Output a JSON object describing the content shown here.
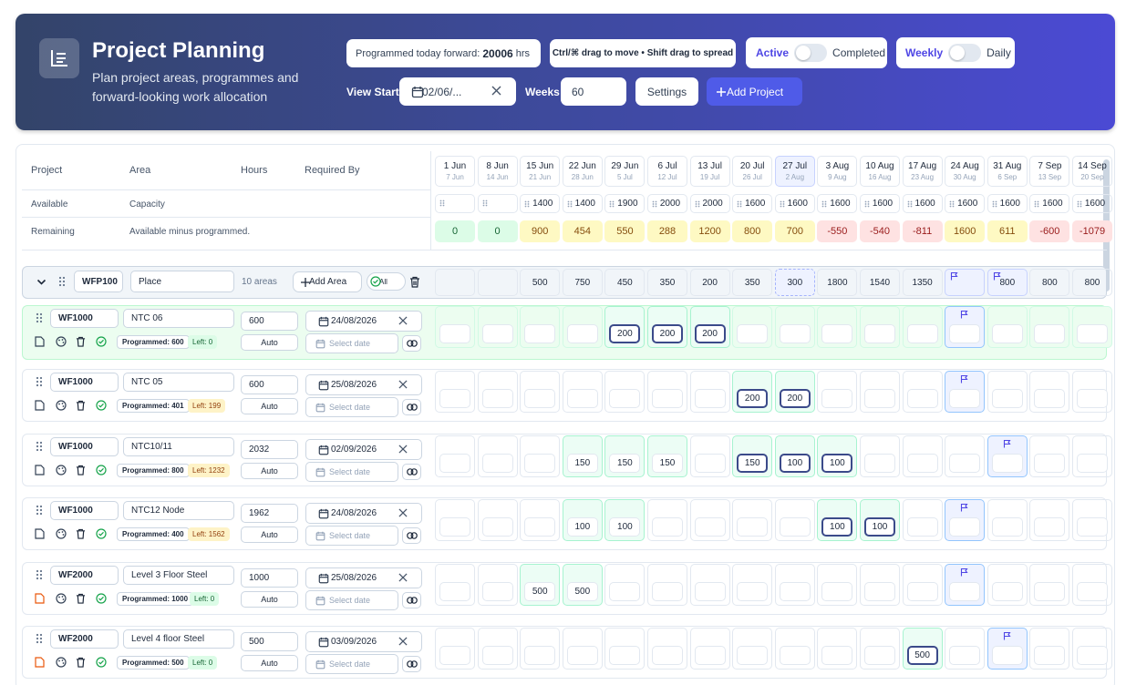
{
  "header": {
    "title": "Project Planning",
    "subtitle": "Plan project areas, programmes and forward-looking work allocation",
    "programmed_label": "Programmed today forward:",
    "programmed_value": "20006",
    "programmed_unit": "hrs",
    "shortcut_hint": "Ctrl/⌘ drag to move • Shift drag to spread",
    "active_label": "Active",
    "completed_label": "Completed",
    "weekly_label": "Weekly",
    "daily_label": "Daily",
    "view_start_label": "View Start",
    "view_start_value": "02/06/...",
    "weeks_label": "Weeks",
    "weeks_value": "60",
    "settings_label": "Settings",
    "add_project_label": "Add Project"
  },
  "columns": {
    "project": "Project",
    "area": "Area",
    "hours": "Hours",
    "required_by": "Required By"
  },
  "available": {
    "label": "Available",
    "desc": "Capacity"
  },
  "remaining": {
    "label": "Remaining",
    "desc": "Available minus programmed."
  },
  "weeks": [
    {
      "d": "1 Jun",
      "s": "7 Jun",
      "cap": "",
      "rem": "0",
      "k": "g"
    },
    {
      "d": "8 Jun",
      "s": "14 Jun",
      "cap": "",
      "rem": "0",
      "k": "g"
    },
    {
      "d": "15 Jun",
      "s": "21 Jun",
      "cap": "1400",
      "rem": "900",
      "k": "y"
    },
    {
      "d": "22 Jun",
      "s": "28 Jun",
      "cap": "1400",
      "rem": "454",
      "k": "y"
    },
    {
      "d": "29 Jun",
      "s": "5 Jul",
      "cap": "1900",
      "rem": "550",
      "k": "y"
    },
    {
      "d": "6 Jul",
      "s": "12 Jul",
      "cap": "2000",
      "rem": "288",
      "k": "y"
    },
    {
      "d": "13 Jul",
      "s": "19 Jul",
      "cap": "2000",
      "rem": "1200",
      "k": "y"
    },
    {
      "d": "20 Jul",
      "s": "26 Jul",
      "cap": "1600",
      "rem": "800",
      "k": "y"
    },
    {
      "d": "27 Jul",
      "s": "2 Aug",
      "cap": "1600",
      "rem": "700",
      "k": "y"
    },
    {
      "d": "3 Aug",
      "s": "9 Aug",
      "cap": "1600",
      "rem": "-550",
      "k": "r"
    },
    {
      "d": "10 Aug",
      "s": "16 Aug",
      "cap": "1600",
      "rem": "-540",
      "k": "r"
    },
    {
      "d": "17 Aug",
      "s": "23 Aug",
      "cap": "1600",
      "rem": "-811",
      "k": "r"
    },
    {
      "d": "24 Aug",
      "s": "30 Aug",
      "cap": "1600",
      "rem": "1600",
      "k": "y"
    },
    {
      "d": "31 Aug",
      "s": "6 Sep",
      "cap": "1600",
      "rem": "611",
      "k": "y"
    },
    {
      "d": "7 Sep",
      "s": "13 Sep",
      "cap": "1600",
      "rem": "-600",
      "k": "r"
    },
    {
      "d": "14 Sep",
      "s": "20 Sep",
      "cap": "1600",
      "rem": "-1079",
      "k": "r"
    }
  ],
  "group": {
    "code": "WFP100",
    "name": "Place",
    "areas_count": "10 areas",
    "add_area_label": "Add Area",
    "all_label": "All",
    "week_values": [
      "",
      "",
      "500",
      "750",
      "450",
      "350",
      "200",
      "350",
      "300",
      "1800",
      "1540",
      "1350",
      "",
      "800",
      "800",
      "800"
    ]
  },
  "rows": [
    {
      "code": "WF1000",
      "area": "NTC 06",
      "hours": "600",
      "required_by": "24/08/2026",
      "mode": "Auto",
      "date_placeholder": "Select date",
      "programmed": "Programmed: 600",
      "left": "Left: 0",
      "weeks": [
        "",
        "",
        "",
        "",
        "200",
        "200",
        "200",
        "",
        "",
        "",
        "",
        "",
        "",
        "",
        "",
        ""
      ]
    },
    {
      "code": "WF1000",
      "area": "NTC 05",
      "hours": "600",
      "required_by": "25/08/2026",
      "mode": "Auto",
      "date_placeholder": "Select date",
      "programmed": "Programmed: 401",
      "left": "Left: 199",
      "weeks": [
        "",
        "",
        "",
        "",
        "",
        "",
        "",
        "200",
        "200",
        "",
        "",
        "",
        "",
        "",
        "",
        ""
      ]
    },
    {
      "code": "WF1000",
      "area": "NTC10/11",
      "hours": "2032",
      "required_by": "02/09/2026",
      "mode": "Auto",
      "date_placeholder": "Select date",
      "programmed": "Programmed: 800",
      "left": "Left: 1232",
      "weeks": [
        "",
        "",
        "",
        "150",
        "150",
        "150",
        "",
        "150",
        "100",
        "100",
        "",
        "",
        "",
        "",
        "",
        ""
      ]
    },
    {
      "code": "WF1000",
      "area": "NTC12 Node",
      "hours": "1962",
      "required_by": "24/08/2026",
      "mode": "Auto",
      "date_placeholder": "Select date",
      "programmed": "Programmed: 400",
      "left": "Left: 1562",
      "weeks": [
        "",
        "",
        "",
        "100",
        "100",
        "",
        "",
        "",
        "",
        "100",
        "100",
        "",
        "",
        "",
        "",
        ""
      ]
    },
    {
      "code": "WF2000",
      "area": "Level 3 Floor Steel",
      "hours": "1000",
      "required_by": "25/08/2026",
      "mode": "Auto",
      "date_placeholder": "Select date",
      "programmed": "Programmed: 1000",
      "left": "Left: 0",
      "weeks": [
        "",
        "",
        "500",
        "500",
        "",
        "",
        "",
        "",
        "",
        "",
        "",
        "",
        "",
        "",
        "",
        ""
      ]
    },
    {
      "code": "WF2000",
      "area": "Level 4 floor Steel",
      "hours": "500",
      "required_by": "03/09/2026",
      "mode": "Auto",
      "date_placeholder": "Select date",
      "programmed": "Programmed: 500",
      "left": "Left: 0",
      "weeks": [
        "",
        "",
        "",
        "",
        "",
        "",
        "",
        "",
        "",
        "",
        "",
        "500",
        "",
        "",
        "",
        ""
      ]
    }
  ]
}
